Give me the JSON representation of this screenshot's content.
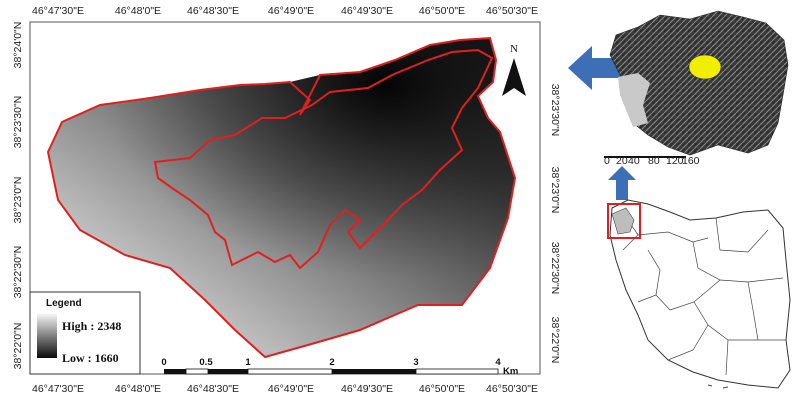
{
  "main_map": {
    "top_coords": [
      "46°47'30\"E",
      "46°48'0\"E",
      "46°48'30\"E",
      "46°49'0\"E",
      "46°49'30\"E",
      "46°50'0\"E",
      "46°50'30\"E"
    ],
    "bottom_coords": [
      "46°47'30\"E",
      "46°48'0\"E",
      "46°48'30\"E",
      "46°49'0\"E",
      "46°49'30\"E",
      "46°50'0\"E",
      "46°50'30\"E"
    ],
    "left_coords": [
      "38°24'0\"N",
      "38°23'30\"N",
      "38°23'0\"N",
      "38°22'30\"N",
      "38°22'0\"N"
    ],
    "right_coords": [
      "38°23'30\"N",
      "38°23'0\"N",
      "38°22'30\"N",
      "38°22'0\"N"
    ],
    "north_label": "N",
    "legend": {
      "title": "Legend",
      "high_label": "High : 2348",
      "low_label": "Low : 1660"
    },
    "scale_bar": {
      "labels": [
        "0",
        "0.5",
        "1",
        "2",
        "3",
        "4"
      ],
      "unit": "Km"
    },
    "colors": {
      "boundary": "#e02020",
      "dem_high": "#111111",
      "dem_low": "#f2f2f2"
    }
  },
  "inset_relief": {
    "scale_labels": [
      "0",
      "20",
      "40",
      "80",
      "120",
      "160"
    ],
    "colors": {
      "marker": "#f2ee00",
      "arrow": "#3d6fb6"
    }
  },
  "inset_iran": {
    "colors": {
      "highlight_box": "#e02020",
      "arrow": "#3d6fb6"
    }
  }
}
